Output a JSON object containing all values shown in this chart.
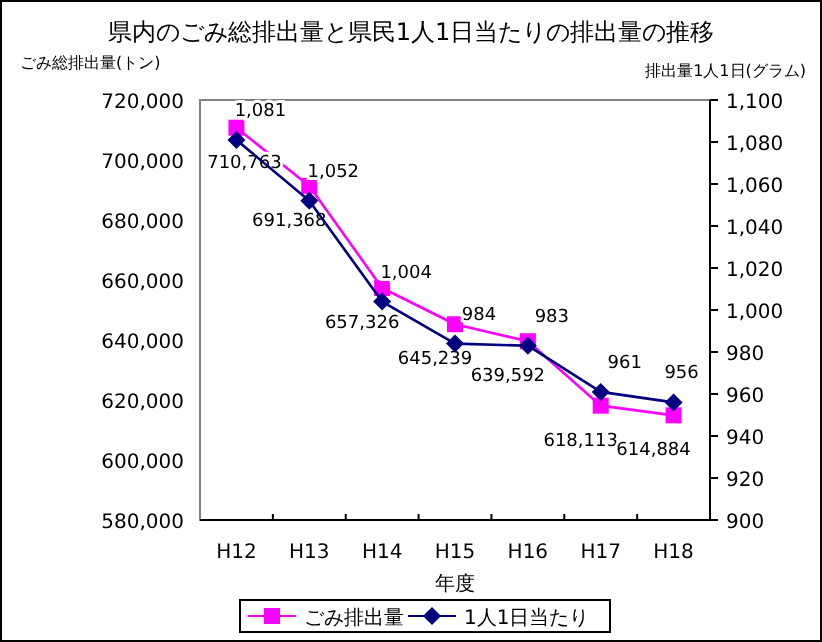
{
  "chart_data": {
    "type": "line",
    "title": "県内のごみ総排出量と県民1人1日当たりの排出量の推移",
    "xlabel": "年度",
    "ylabel": "ごみ総排出量(トン)",
    "y2label": "排出量1人1日(グラム)",
    "categories": [
      "H12",
      "H13",
      "H14",
      "H15",
      "H16",
      "H17",
      "H18"
    ],
    "series": [
      {
        "name": "ごみ排出量",
        "color": "#ff00ff",
        "marker": "square",
        "values": [
          710763,
          691368,
          657326,
          645239,
          639592,
          618113,
          614884
        ],
        "value_labels": [
          "710,763",
          "691,368",
          "657,326",
          "645,239",
          "639,592",
          "618,113",
          "614,884"
        ]
      },
      {
        "name": "1人1日当たり",
        "color": "#000080",
        "marker": "diamond",
        "axis": "y2",
        "values": [
          1081,
          1052,
          1004,
          984,
          983,
          961,
          956
        ],
        "value_labels": [
          "1,081",
          "1,052",
          "1,004",
          "984",
          "983",
          "961",
          "956"
        ]
      }
    ],
    "ylim": [
      580000,
      720000
    ],
    "yticks": [
      {
        "value": 580000,
        "label": "580,000"
      },
      {
        "value": 600000,
        "label": "600,000"
      },
      {
        "value": 620000,
        "label": "620,000"
      },
      {
        "value": 640000,
        "label": "640,000"
      },
      {
        "value": 660000,
        "label": "660,000"
      },
      {
        "value": 680000,
        "label": "680,000"
      },
      {
        "value": 700000,
        "label": "700,000"
      },
      {
        "value": 720000,
        "label": "720,000"
      }
    ],
    "y2lim": [
      900,
      1100
    ],
    "y2ticks": [
      900,
      920,
      940,
      960,
      980,
      {
        "value": 1000,
        "label": "1,000"
      },
      {
        "value": 1020,
        "label": "1,020"
      },
      {
        "value": 1040,
        "label": "1,040"
      },
      {
        "value": 1060,
        "label": "1,060"
      },
      {
        "value": 1080,
        "label": "1,080"
      },
      {
        "value": 1100,
        "label": "1,100"
      }
    ],
    "legend": "bottom",
    "grid": false
  }
}
